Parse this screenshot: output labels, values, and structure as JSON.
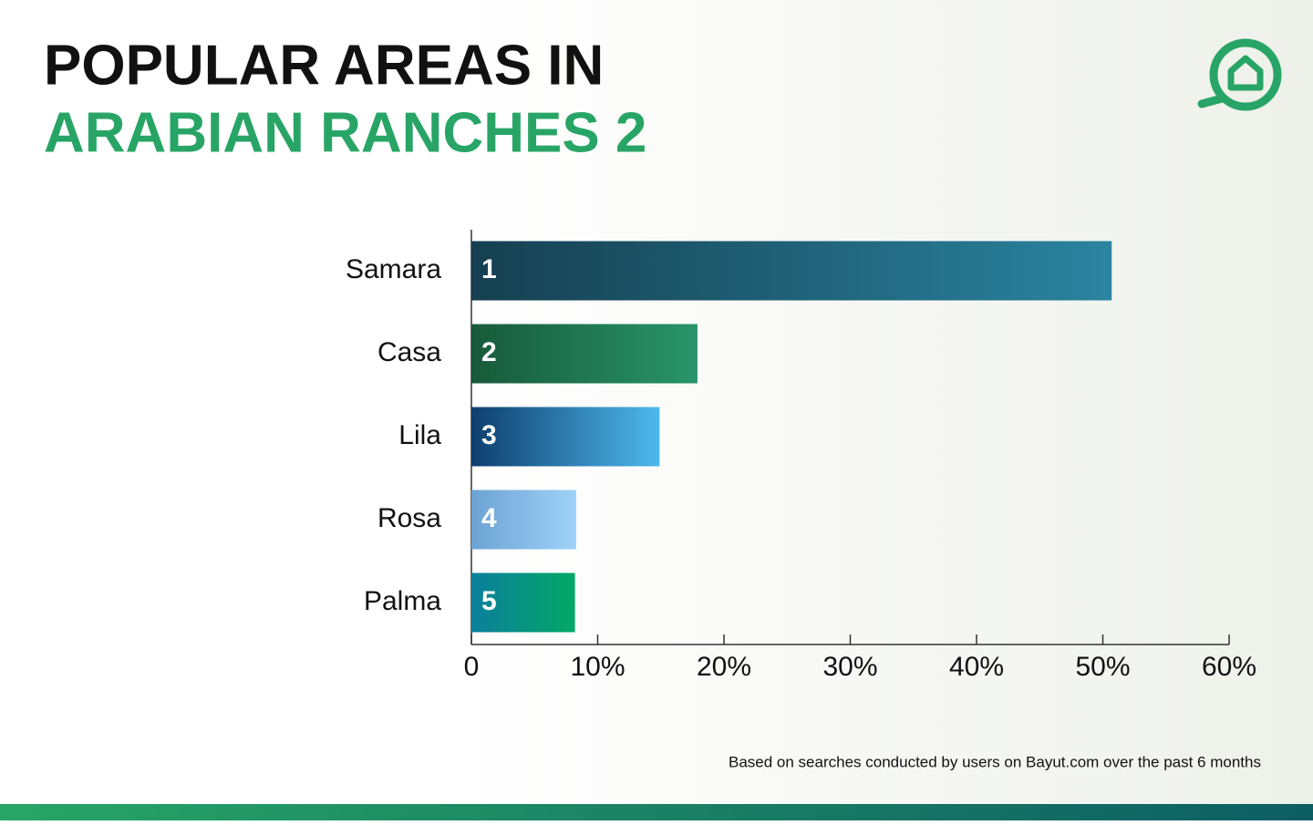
{
  "title_line1": "POPULAR AREAS IN",
  "title_line2": "ARABIAN RANCHES 2",
  "footnote": "Based on searches conducted by users on Bayut.com over the past 6 months",
  "chart_data": {
    "type": "bar",
    "orientation": "horizontal",
    "categories": [
      "Samara",
      "Casa",
      "Lila",
      "Rosa",
      "Palma"
    ],
    "values": [
      50.7,
      17.9,
      14.9,
      8.3,
      8.2
    ],
    "ranks": [
      1,
      2,
      3,
      4,
      5
    ],
    "colors": [
      [
        "#163f50",
        "#2a84a0"
      ],
      [
        "#175a3a",
        "#28956a"
      ],
      [
        "#0d3f6e",
        "#4eb9ec"
      ],
      [
        "#6da3d4",
        "#9fd2f8"
      ],
      [
        "#0b7f9c",
        "#02a865"
      ]
    ],
    "xlim": [
      0,
      60
    ],
    "xticks": [
      0,
      {
        "value": 10,
        "label": "10%"
      },
      {
        "value": 20,
        "label": "20%"
      },
      {
        "value": 30,
        "label": "30%"
      },
      {
        "value": 40,
        "label": "40%"
      },
      {
        "value": 50,
        "label": "50%"
      },
      {
        "value": 60,
        "label": "60%"
      }
    ]
  }
}
